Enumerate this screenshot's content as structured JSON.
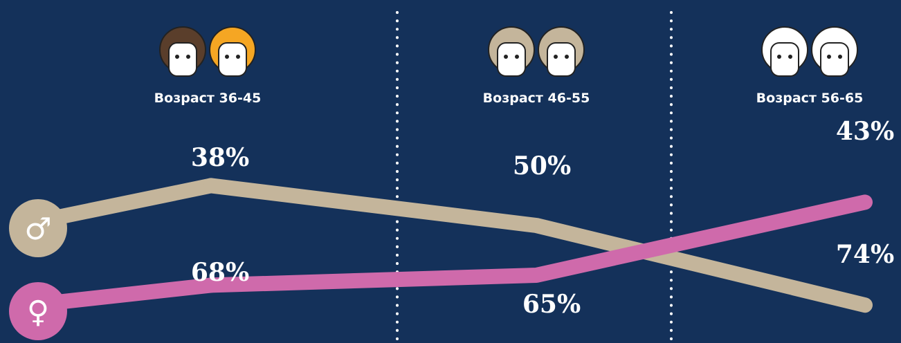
{
  "chart_data": {
    "type": "line",
    "categories": [
      "Возраст 36-45",
      "Возраст 46-55",
      "Возраст 56-65"
    ],
    "ylim": [
      80,
      30
    ],
    "series": [
      {
        "name": "♂",
        "color": "#c4b59b",
        "values": [
          38,
          50,
          74
        ],
        "value_labels": [
          "38%",
          "50%",
          "74%"
        ]
      },
      {
        "name": "♀",
        "color": "#cf6aab",
        "values": [
          68,
          65,
          43
        ],
        "value_labels": [
          "68%",
          "65%",
          "43%"
        ]
      }
    ]
  }
}
